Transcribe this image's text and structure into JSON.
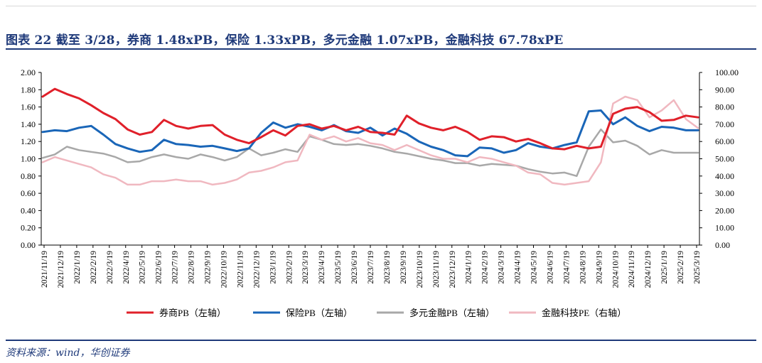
{
  "figure": {
    "title": "图表 22   截至 3/28，券商 1.48xPB，保险 1.33xPB，多元金融 1.07xPB，金融科技 67.78xPE",
    "source": "资料来源：wind，华创证券"
  },
  "chart_data": {
    "type": "line",
    "title": "截至 3/28，券商 1.48xPB，保险 1.33xPB，多元金融 1.07xPB，金融科技 67.78xPE",
    "x_tick_labels": [
      "2021/11/19",
      "2021/12/19",
      "2022/1/19",
      "2022/2/19",
      "2022/3/19",
      "2022/4/19",
      "2022/5/19",
      "2022/6/19",
      "2022/7/19",
      "2022/8/19",
      "2022/9/19",
      "2022/10/19",
      "2022/11/19",
      "2022/12/19",
      "2023/1/19",
      "2023/2/19",
      "2023/3/19",
      "2023/4/19",
      "2023/5/19",
      "2023/6/19",
      "2023/7/19",
      "2023/8/19",
      "2023/9/19",
      "2023/10/19",
      "2023/11/19",
      "2023/12/19",
      "2024/1/19",
      "2024/2/19",
      "2024/3/19",
      "2024/4/19",
      "2024/5/19",
      "2024/6/19",
      "2024/7/19",
      "2024/8/19",
      "2024/9/19",
      "2024/10/19",
      "2024/11/19",
      "2024/12/19",
      "2025/1/19",
      "2025/2/19",
      "2025/3/19"
    ],
    "y_left": {
      "min": 0,
      "max": 2,
      "ticks": [
        "0.00",
        "0.20",
        "0.40",
        "0.60",
        "0.80",
        "1.00",
        "1.20",
        "1.40",
        "1.60",
        "1.80",
        "2.00"
      ]
    },
    "y_right": {
      "min": 0,
      "max": 100,
      "ticks": [
        "0.00",
        "10.00",
        "20.00",
        "30.00",
        "40.00",
        "50.00",
        "60.00",
        "70.00",
        "80.00",
        "90.00",
        "100.00"
      ]
    },
    "legend_position": "bottom",
    "series": [
      {
        "name": "券商PB（左轴）",
        "axis": "left",
        "color": "#e0202a",
        "width": 3,
        "values": [
          1.72,
          1.81,
          1.75,
          1.7,
          1.62,
          1.53,
          1.46,
          1.34,
          1.28,
          1.31,
          1.45,
          1.38,
          1.35,
          1.38,
          1.39,
          1.28,
          1.22,
          1.18,
          1.25,
          1.33,
          1.27,
          1.38,
          1.4,
          1.35,
          1.38,
          1.33,
          1.37,
          1.31,
          1.3,
          1.28,
          1.5,
          1.41,
          1.36,
          1.33,
          1.37,
          1.31,
          1.22,
          1.26,
          1.25,
          1.2,
          1.23,
          1.18,
          1.12,
          1.11,
          1.15,
          1.12,
          1.14,
          1.52,
          1.58,
          1.6,
          1.54,
          1.44,
          1.45,
          1.5,
          1.48
        ]
      },
      {
        "name": "保险PB（左轴）",
        "axis": "left",
        "color": "#1a66b8",
        "width": 3,
        "values": [
          1.31,
          1.33,
          1.32,
          1.36,
          1.38,
          1.28,
          1.17,
          1.12,
          1.08,
          1.1,
          1.22,
          1.17,
          1.16,
          1.14,
          1.15,
          1.12,
          1.09,
          1.12,
          1.3,
          1.42,
          1.36,
          1.4,
          1.37,
          1.33,
          1.39,
          1.32,
          1.3,
          1.36,
          1.27,
          1.35,
          1.29,
          1.2,
          1.14,
          1.1,
          1.04,
          1.03,
          1.13,
          1.12,
          1.07,
          1.1,
          1.18,
          1.14,
          1.12,
          1.16,
          1.19,
          1.55,
          1.56,
          1.4,
          1.48,
          1.38,
          1.32,
          1.37,
          1.36,
          1.33,
          1.33
        ]
      },
      {
        "name": "多元金融PB（左轴）",
        "axis": "left",
        "color": "#a8a8a8",
        "width": 2.5,
        "values": [
          1.01,
          1.05,
          1.14,
          1.1,
          1.08,
          1.06,
          1.02,
          0.96,
          0.97,
          1.02,
          1.05,
          1.02,
          1.0,
          1.05,
          1.02,
          0.98,
          1.02,
          1.12,
          1.04,
          1.07,
          1.11,
          1.08,
          1.26,
          1.22,
          1.17,
          1.16,
          1.17,
          1.15,
          1.12,
          1.08,
          1.06,
          1.03,
          1.0,
          0.98,
          0.95,
          0.95,
          0.92,
          0.94,
          0.93,
          0.92,
          0.88,
          0.85,
          0.83,
          0.84,
          0.8,
          1.14,
          1.34,
          1.19,
          1.21,
          1.15,
          1.05,
          1.1,
          1.07,
          1.07,
          1.07
        ]
      },
      {
        "name": "金融科技PE（右轴）",
        "axis": "right",
        "color": "#f0b8c0",
        "width": 2.5,
        "values": [
          48,
          51,
          49,
          47,
          45,
          41,
          39,
          35,
          35,
          37,
          37,
          38,
          37,
          37,
          35,
          36,
          38,
          42,
          43,
          45,
          48,
          49,
          64,
          61,
          63,
          60,
          62,
          59,
          58,
          55,
          58,
          55,
          52,
          50,
          50,
          48,
          51,
          50,
          48,
          46,
          42,
          41,
          36,
          35,
          36,
          37,
          48,
          82,
          86,
          84,
          74,
          78,
          84,
          73,
          67.78
        ]
      }
    ]
  }
}
